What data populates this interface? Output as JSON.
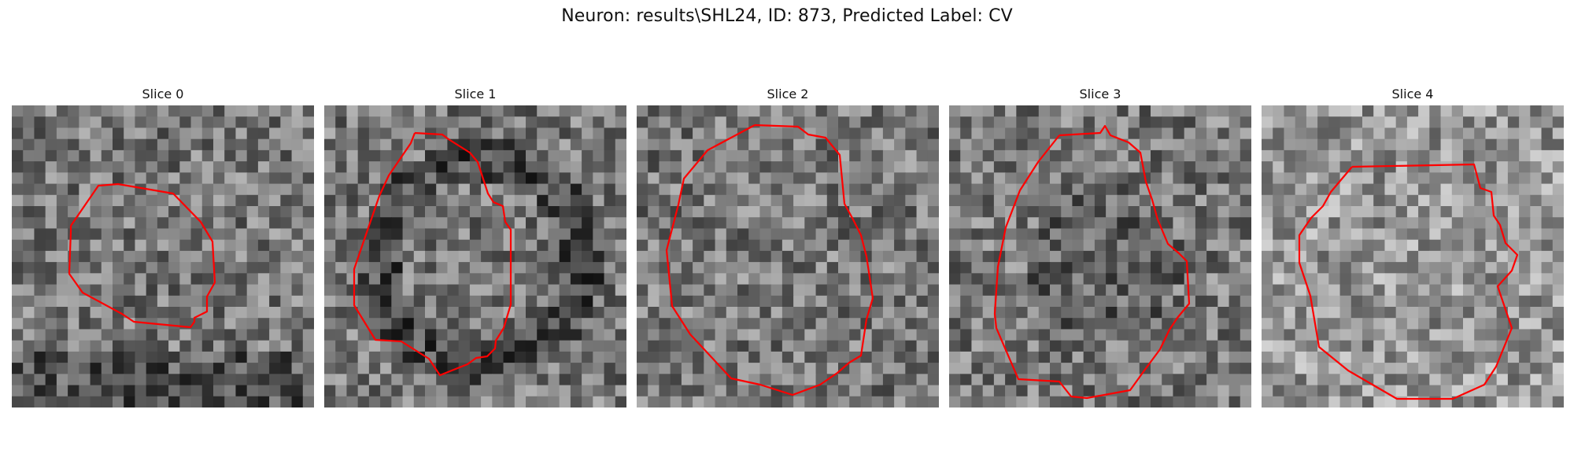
{
  "figure": {
    "title": "Neuron: results\\SHL24, ID: 873, Predicted Label: CV",
    "contour_color": "#ff0000",
    "colormap": "grayscale"
  },
  "slices": [
    {
      "title": "Slice 0"
    },
    {
      "title": "Slice 1"
    },
    {
      "title": "Slice 2"
    },
    {
      "title": "Slice 3"
    },
    {
      "title": "Slice 4"
    }
  ]
}
